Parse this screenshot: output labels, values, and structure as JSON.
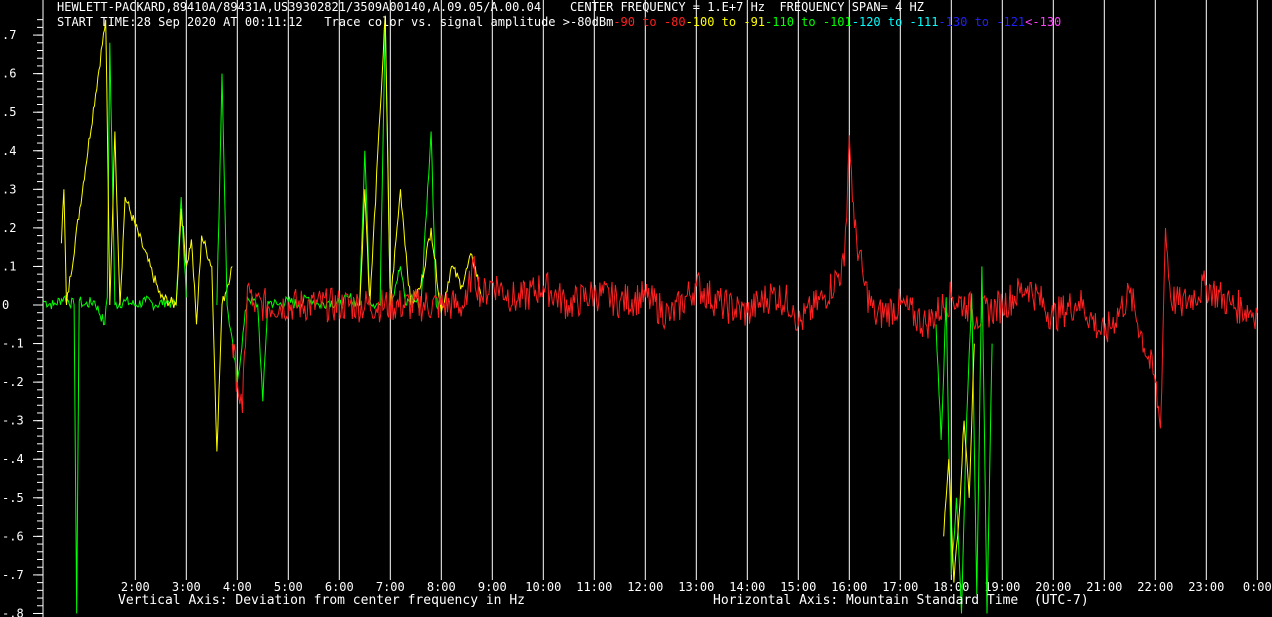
{
  "header": {
    "line1": "HEWLETT-PACKARD,89410A/89431A,US39302821/3509A00140,A.09.05/A.00.04    CENTER FREQUENCY = 1.E+7 Hz  FREQUENCY SPAN= 4 HZ",
    "start_time": "START TIME:28 Sep 2020 AT 00:11:12",
    "legend_intro": "Trace color vs. signal amplitude >-80dBm",
    "legend": [
      {
        "text": "-90 to -80",
        "color": "#ff2020"
      },
      {
        "text": "-100 to -91",
        "color": "#ffff00"
      },
      {
        "text": "-110 to -101",
        "color": "#00ff00"
      },
      {
        "text": "-120 to -111",
        "color": "#00ffff"
      },
      {
        "text": "-130 to -121",
        "color": "#2020ff"
      },
      {
        "text": "<-130",
        "color": "#ff40ff"
      }
    ]
  },
  "footer": {
    "left": "Vertical Axis: Deviation from center frequency in Hz",
    "right": "Horizontal Axis: Mountain Standard Time  (UTC-7)"
  },
  "chart_data": {
    "type": "line",
    "xlabel": "Horizontal Axis: Mountain Standard Time  (UTC-7)",
    "ylabel": "Vertical Axis: Deviation from center frequency in Hz",
    "ylim": [
      -0.8,
      0.75
    ],
    "xlim": [
      0.19,
      24.19
    ],
    "grid": "vertical lines at each hour",
    "yticks": [
      0.7,
      0.6,
      0.5,
      0.4,
      0.3,
      0.2,
      0.1,
      0,
      -0.1,
      -0.2,
      -0.3,
      -0.4,
      -0.5,
      -0.6,
      -0.7,
      -0.8
    ],
    "ytick_labels": [
      ".7",
      ".6",
      ".5",
      ".4",
      ".3",
      ".2",
      ".1",
      "0",
      "-.1",
      "-.2",
      "-.3",
      "-.4",
      "-.5",
      "-.6",
      "-.7",
      "-.8"
    ],
    "xticks": [
      2,
      3,
      4,
      5,
      6,
      7,
      8,
      9,
      10,
      11,
      12,
      13,
      14,
      15,
      16,
      17,
      18,
      19,
      20,
      21,
      22,
      23,
      24
    ],
    "xtick_labels": [
      "2:00",
      "3:00",
      "4:00",
      "5:00",
      "6:00",
      "7:00",
      "8:00",
      "9:00",
      "10:00",
      "11:00",
      "12:00",
      "13:00",
      "14:00",
      "15:00",
      "16:00",
      "17:00",
      "18:00",
      "19:00",
      "20:00",
      "21:00",
      "22:00",
      "23:00",
      "0:00"
    ],
    "series": [
      {
        "color": "#00ff00",
        "x": [
          0.2,
          0.4,
          0.6,
          0.8,
          0.85,
          0.9,
          1.0,
          1.2,
          1.4,
          1.45,
          1.5,
          1.6,
          1.8,
          2.0,
          2.2,
          2.4,
          2.6,
          2.8,
          2.9,
          3.0
        ],
        "y": [
          0.01,
          0.0,
          0.02,
          0.0,
          -0.8,
          0.01,
          0.0,
          0.01,
          -0.05,
          0.02,
          0.68,
          0.0,
          0.01,
          0.0,
          0.01,
          0.0,
          0.01,
          0.0,
          0.28,
          0.02
        ]
      },
      {
        "color": "#ffff00",
        "x": [
          0.55,
          0.6,
          0.65,
          1.42,
          1.5,
          1.6,
          1.7,
          1.8,
          2.5,
          2.8,
          2.9,
          3.0,
          3.1,
          3.2,
          3.3,
          3.5,
          3.6,
          3.7,
          3.9
        ],
        "y": [
          0.16,
          0.3,
          0.0,
          0.74,
          0.0,
          0.45,
          0.0,
          0.28,
          0.02,
          0.0,
          0.25,
          0.1,
          0.17,
          -0.05,
          0.18,
          0.1,
          -0.38,
          0.0,
          0.1
        ]
      },
      {
        "color": "#00ff00",
        "x": [
          3.6,
          3.7,
          3.8,
          4.0,
          4.2,
          4.4,
          4.5,
          4.6,
          4.8,
          5.0,
          5.2,
          5.4,
          5.6,
          5.8,
          6.0,
          6.2,
          6.4,
          6.5,
          6.6,
          6.8,
          6.9,
          7.0,
          7.1,
          7.2,
          7.3,
          7.4,
          7.6,
          7.8,
          7.9,
          8.0
        ],
        "y": [
          0.0,
          0.6,
          0.0,
          -0.2,
          0.02,
          0.0,
          -0.25,
          0.01,
          0.0,
          0.01,
          0.0,
          0.02,
          0.0,
          0.01,
          0.0,
          0.02,
          0.0,
          0.4,
          0.01,
          0.0,
          0.75,
          0.0,
          0.05,
          0.1,
          0.0,
          0.02,
          0.0,
          0.45,
          0.0,
          0.02
        ]
      },
      {
        "color": "#ffff00",
        "x": [
          6.4,
          6.5,
          6.6,
          6.8,
          6.9,
          7.0,
          7.2,
          7.4,
          7.6,
          7.8,
          8.0,
          8.2,
          8.4,
          8.6,
          8.8
        ],
        "y": [
          0.0,
          0.3,
          0.0,
          0.5,
          0.75,
          0.0,
          0.3,
          0.0,
          0.05,
          0.2,
          -0.02,
          0.1,
          0.05,
          0.13,
          0.02
        ]
      },
      {
        "color": "#ff2020",
        "x": [
          3.9,
          4.0,
          4.1,
          4.2,
          4.3,
          8.5,
          8.6,
          8.8,
          9.0,
          9.5,
          10.0,
          10.5,
          11.0,
          11.5,
          12.0,
          12.5,
          13.0,
          13.5,
          14.0,
          14.5,
          14.9,
          15.0,
          15.5,
          15.9,
          16.0,
          16.1,
          16.3,
          16.5,
          17.0,
          17.5,
          18.0,
          18.3,
          18.5,
          19.0,
          19.5,
          20.0,
          20.5,
          21.0,
          21.5,
          22.0,
          22.1,
          22.2,
          22.3,
          22.5,
          23.0,
          23.5,
          24.0
        ],
        "y": [
          -0.1,
          -0.2,
          -0.28,
          0.05,
          0.0,
          0.0,
          0.1,
          0.02,
          0.06,
          0.01,
          0.05,
          0.0,
          0.03,
          0.01,
          0.02,
          -0.03,
          0.05,
          0.0,
          -0.02,
          0.03,
          0.0,
          -0.05,
          0.02,
          0.1,
          0.44,
          0.2,
          0.05,
          -0.03,
          0.0,
          -0.05,
          0.02,
          0.0,
          -0.03,
          0.0,
          0.05,
          -0.03,
          0.01,
          -0.08,
          0.03,
          -0.2,
          -0.32,
          0.2,
          0.02,
          0.0,
          0.05,
          0.0,
          -0.02
        ]
      },
      {
        "color": "#00ff00",
        "x": [
          17.7,
          17.8,
          17.9,
          18.0,
          18.1,
          18.2,
          18.3,
          18.4,
          18.5,
          18.6,
          18.7,
          18.8
        ],
        "y": [
          -0.05,
          -0.35,
          0.02,
          -0.7,
          -0.5,
          -0.8,
          -0.3,
          0.03,
          -0.75,
          0.1,
          -0.8,
          -0.1
        ]
      },
      {
        "color": "#ffff00",
        "x": [
          17.85,
          17.95,
          18.05,
          18.15,
          18.25,
          18.35,
          18.45
        ],
        "y": [
          -0.6,
          -0.4,
          -0.72,
          -0.55,
          -0.3,
          -0.5,
          -0.1
        ]
      }
    ]
  }
}
